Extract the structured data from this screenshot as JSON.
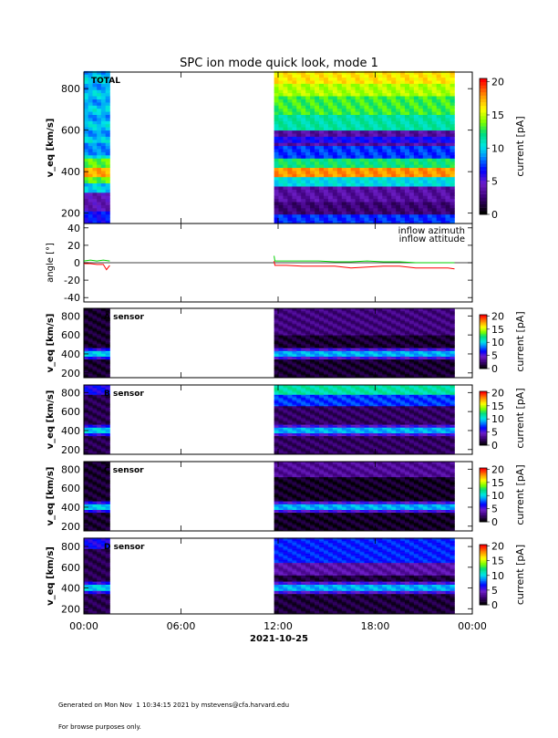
{
  "title": "SPC ion mode quick look, mode 1",
  "date_label": "2021-10-25",
  "x_ticks": [
    "00:00",
    "06:00",
    "12:00",
    "18:00",
    "00:00"
  ],
  "footer": {
    "line1": "Generated on Mon Nov  1 10:34:15 2021 by mstevens@cfa.harvard.edu",
    "line2": "For browse purposes only."
  },
  "colorbar_label": "current [pA]",
  "chart_data": [
    {
      "type": "heatmap",
      "name": "TOTAL",
      "label": "TOTAL",
      "ylabel": "v_eq [km/s]",
      "y_ticks": [
        200,
        400,
        600,
        800
      ],
      "ylim": [
        150,
        880
      ],
      "xlim_hours": [
        0,
        24
      ],
      "data_intervals_hours": [
        [
          0,
          1.6
        ],
        [
          11.75,
          22.9
        ]
      ],
      "colorbar": {
        "ticks": [
          0,
          5,
          10,
          15,
          20
        ],
        "range": [
          0,
          20.5
        ]
      }
    },
    {
      "type": "line",
      "ylabel": "angle [°]",
      "y_ticks": [
        -40,
        -20,
        0,
        20,
        40
      ],
      "ylim": [
        -45,
        45
      ],
      "legend": [
        "inflow azimuth",
        "inflow attitude"
      ],
      "legend_placement": "top-right",
      "series": [
        {
          "name": "inflow azimuth",
          "color": "#ff0000",
          "x": [
            0,
            0.4,
            0.8,
            1.2,
            1.4,
            1.6,
            11.75,
            11.8,
            12.5,
            13.5,
            14.5,
            15.5,
            16.5,
            17.5,
            18.5,
            19.5,
            20.5,
            21.5,
            22.5,
            22.9
          ],
          "y": [
            -1,
            -1,
            -2,
            -2,
            -8,
            -3,
            2,
            -3,
            -3,
            -4,
            -4,
            -4,
            -6,
            -5,
            -4,
            -4,
            -6,
            -6,
            -6,
            -7
          ]
        },
        {
          "name": "inflow attitude",
          "color": "#00d000",
          "x": [
            0,
            0.4,
            0.8,
            1.2,
            1.6,
            11.75,
            11.8,
            12.5,
            13.5,
            14.5,
            15.5,
            16.5,
            17.5,
            18.5,
            19.5,
            20.5,
            21.5,
            22.5,
            22.9
          ],
          "y": [
            2,
            3,
            2,
            3,
            2,
            8,
            2,
            2,
            2,
            2,
            1,
            1,
            2,
            1,
            1,
            0,
            0,
            0,
            0
          ]
        }
      ]
    },
    {
      "type": "heatmap",
      "name": "A sensor",
      "label": "A sensor",
      "ylabel": "v_eq [km/s]",
      "y_ticks": [
        200,
        400,
        600,
        800
      ],
      "ylim": [
        150,
        880
      ],
      "colorbar": {
        "ticks": [
          0,
          5,
          10,
          15,
          20
        ],
        "range": [
          0,
          20.5
        ]
      }
    },
    {
      "type": "heatmap",
      "name": "B sensor",
      "label": "B sensor",
      "ylabel": "v_eq [km/s]",
      "y_ticks": [
        200,
        400,
        600,
        800
      ],
      "ylim": [
        150,
        880
      ],
      "colorbar": {
        "ticks": [
          0,
          5,
          10,
          15,
          20
        ],
        "range": [
          0,
          20.5
        ]
      }
    },
    {
      "type": "heatmap",
      "name": "C sensor",
      "label": "C sensor",
      "ylabel": "v_eq [km/s]",
      "y_ticks": [
        200,
        400,
        600,
        800
      ],
      "ylim": [
        150,
        880
      ],
      "colorbar": {
        "ticks": [
          0,
          5,
          10,
          15,
          20
        ],
        "range": [
          0,
          20.5
        ]
      }
    },
    {
      "type": "heatmap",
      "name": "D sensor",
      "label": "D sensor",
      "ylabel": "v_eq [km/s]",
      "y_ticks": [
        200,
        400,
        600,
        800
      ],
      "ylim": [
        150,
        880
      ],
      "colorbar": {
        "ticks": [
          0,
          5,
          10,
          15,
          20
        ],
        "range": [
          0,
          20.5
        ]
      }
    }
  ]
}
